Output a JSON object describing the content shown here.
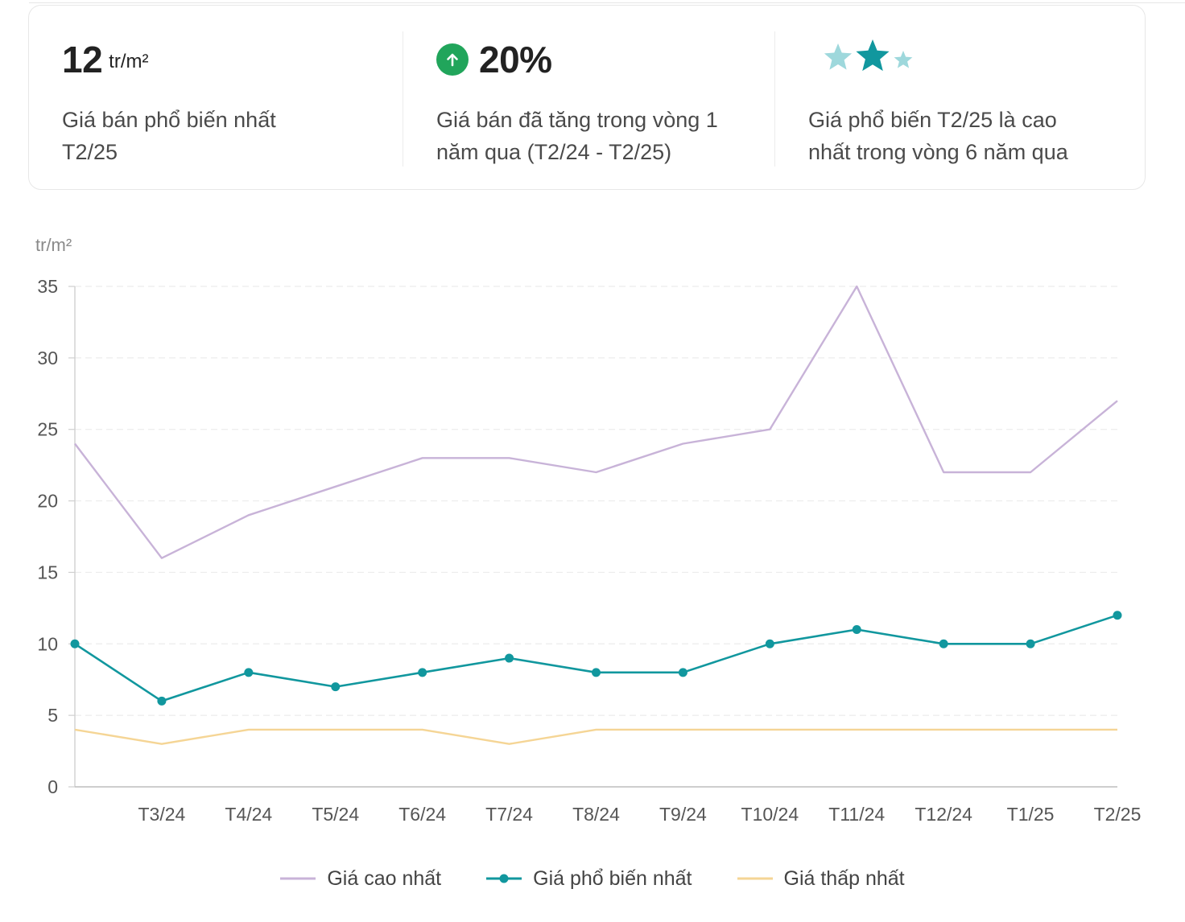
{
  "stats": {
    "popular_price": {
      "value": "12",
      "unit": "tr/m²",
      "desc_line1": "Giá bán phổ biến nhất",
      "desc_line2": "T2/25"
    },
    "growth": {
      "value": "20%",
      "icon": "arrow-up-icon",
      "desc_line1": "Giá bán đã tăng trong vòng 1",
      "desc_line2": "năm qua (T2/24 - T2/25)"
    },
    "rating": {
      "stars": 3,
      "highlighted_star": 2,
      "desc_line1": "Giá phổ biến T2/25 là cao",
      "desc_line2": "nhất trong vòng 6 năm qua"
    }
  },
  "colors": {
    "accent": "#11979e",
    "up_badge": "#21a55b",
    "star_light": "#9ed8dc",
    "star_dark": "#11979e",
    "series_high": "#c8b3d8",
    "series_popular": "#11979e",
    "series_low": "#f5d595"
  },
  "chart_data": {
    "type": "line",
    "ylabel": "tr/m²",
    "ylim": [
      0,
      35
    ],
    "yticks": [
      0,
      5,
      10,
      15,
      20,
      25,
      30,
      35
    ],
    "grid": true,
    "x": [
      "",
      "T3/24",
      "T4/24",
      "T5/24",
      "T6/24",
      "T7/24",
      "T8/24",
      "T9/24",
      "T10/24",
      "T11/24",
      "T12/24",
      "T1/25",
      "T2/25"
    ],
    "series": [
      {
        "name": "Giá cao nhất",
        "color": "#c8b3d8",
        "markers": false,
        "values": [
          24,
          16,
          19,
          21,
          23,
          23,
          22,
          24,
          25,
          35,
          22,
          22,
          27
        ]
      },
      {
        "name": "Giá phổ biến nhất",
        "color": "#11979e",
        "markers": true,
        "values": [
          10,
          6,
          8,
          7,
          8,
          9,
          8,
          8,
          10,
          11,
          10,
          10,
          12
        ]
      },
      {
        "name": "Giá thấp nhất",
        "color": "#f5d595",
        "markers": false,
        "values": [
          4,
          3,
          4,
          4,
          4,
          3,
          4,
          4,
          4,
          4,
          4,
          4,
          4
        ]
      }
    ],
    "legend_position": "bottom"
  }
}
